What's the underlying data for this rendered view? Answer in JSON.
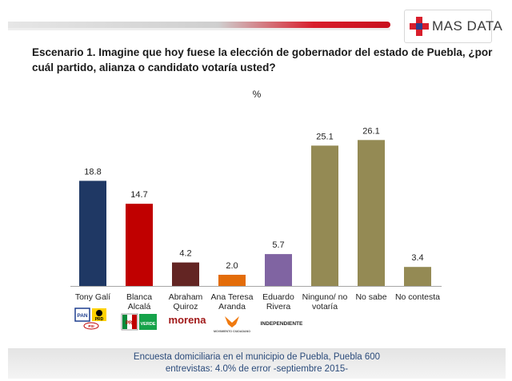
{
  "header": {
    "brand": "MAS DATA",
    "brand_colors": {
      "red": "#d81e2c",
      "blue": "#2a3f8f"
    }
  },
  "question": "Escenario 1. Imagine que hoy fuese la elección de gobernador del estado de Puebla, ¿por cuál partido, alianza o candidato votaría usted?",
  "chart_data": {
    "type": "bar",
    "title": "",
    "ylabel": "%",
    "xlabel": "",
    "ylim": [
      0,
      28
    ],
    "grid": false,
    "categories": [
      "Tony Galí",
      "Blanca Alcalá",
      "Abraham Quiroz",
      "Ana Teresa Aranda",
      "Eduardo Rivera",
      "Ninguno/ no votaría",
      "No sabe",
      "No contesta"
    ],
    "category_lines": [
      [
        "Tony Galí"
      ],
      [
        "Blanca",
        "Alcalá"
      ],
      [
        "Abraham",
        "Quiroz"
      ],
      [
        "Ana Teresa",
        "Aranda"
      ],
      [
        "Eduardo",
        "Rivera"
      ],
      [
        "Ninguno/ no",
        "votaría"
      ],
      [
        "No sabe"
      ],
      [
        "No contesta"
      ]
    ],
    "values": [
      18.8,
      14.7,
      4.2,
      2.0,
      5.7,
      25.1,
      26.1,
      3.4
    ],
    "value_labels": [
      "18.8",
      "14.7",
      "4.2",
      "2.0",
      "5.7",
      "25.1",
      "26.1",
      "3.4"
    ],
    "colors": [
      "#1f3864",
      "#c00000",
      "#632523",
      "#e36c09",
      "#8064a2",
      "#948a54",
      "#948a54",
      "#948a54"
    ]
  },
  "party_labels": {
    "pan": "PAN",
    "prd": "PRD",
    "psi": "PSI",
    "pri": "PRI",
    "verde": "VERDE",
    "morena": "morena",
    "movimiento_ciudadano": "MOVIMIENTO CIUDADANO",
    "independiente": "INDEPENDIENTE"
  },
  "footer": {
    "line1": "Encuesta domiciliaria en el municipio de Puebla, Puebla 600",
    "line2": "entrevistas: 4.0% de error -septiembre 2015-"
  }
}
